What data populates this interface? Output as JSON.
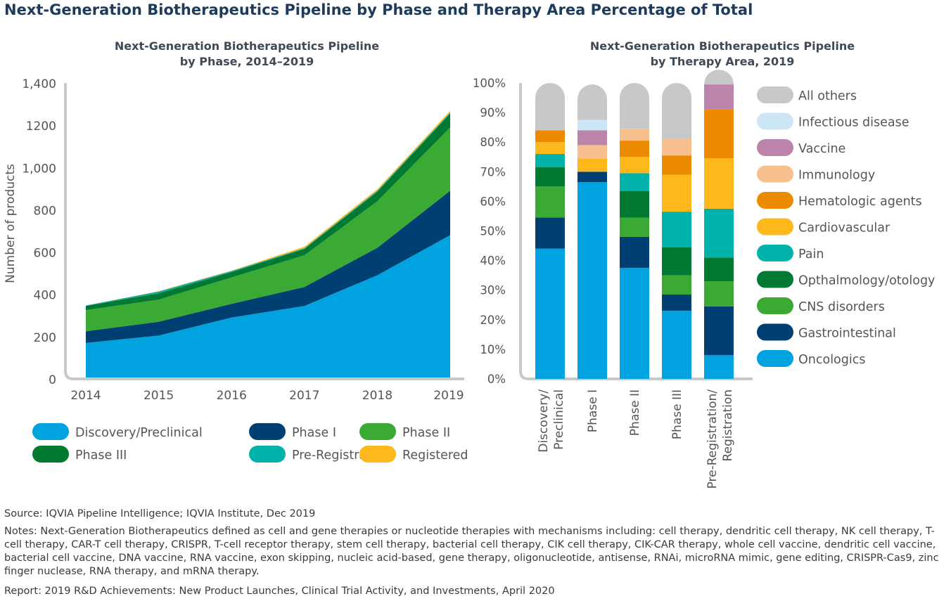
{
  "main_title": "Next-Generation Biotherapeutics Pipeline by Phase and Therapy Area Percentage of Total",
  "footer": {
    "source": "Source: IQVIA Pipeline Intelligence; IQVIA Institute, Dec 2019",
    "notes": "Notes: Next-Generation Biotherapeutics defined as cell and gene therapies or nucleotide therapies with mechanisms including: cell therapy, dendritic cell therapy, NK cell therapy, T-cell therapy, CAR-T cell therapy, CRISPR, T-cell receptor therapy, stem cell therapy, bacterial cell therapy, CIK cell therapy, CIK-CAR therapy, whole cell vaccine, dendritic cell vaccine, bacterial cell vaccine, DNA vaccine, RNA vaccine, exon skipping, nucleic acid-based, gene therapy, oligonucleotide, antisense, RNAi, microRNA mimic, gene editing, CRISPR-Cas9, zinc finger nuclease, RNA therapy, and mRNA therapy.",
    "report": "Report: 2019 R&D Achievements: New Product Launches, Clinical Trial Activity, and Investments, April 2020"
  },
  "chart_data": [
    {
      "type": "area",
      "stacked": true,
      "title_line1": "Next-Generation Biotherapeutics Pipeline",
      "title_line2": "by Phase, 2014–2019",
      "ylabel": "Number of products",
      "xlabel": "",
      "ylim": [
        0,
        1400
      ],
      "yticks": [
        0,
        200,
        400,
        600,
        800,
        1000,
        1200,
        1400
      ],
      "ytick_labels": [
        "0",
        "200",
        "400",
        "600",
        "800",
        "1,000",
        "1200",
        "1,400"
      ],
      "x": [
        "2014",
        "2015",
        "2016",
        "2017",
        "2018",
        "2019"
      ],
      "series": [
        {
          "name": "Discovery/Preclinical",
          "color": "#00A3E0",
          "values": [
            170,
            205,
            290,
            345,
            490,
            680
          ]
        },
        {
          "name": "Phase I",
          "color": "#003F72",
          "values": [
            55,
            65,
            65,
            90,
            130,
            210
          ]
        },
        {
          "name": "Phase II",
          "color": "#3AAA35",
          "values": [
            100,
            105,
            125,
            150,
            220,
            300
          ]
        },
        {
          "name": "Phase III",
          "color": "#007A33",
          "values": [
            20,
            30,
            25,
            30,
            45,
            65
          ]
        },
        {
          "name": "Pre-Registration",
          "color": "#00B2A9",
          "values": [
            2,
            8,
            5,
            3,
            5,
            5
          ]
        },
        {
          "name": "Registered",
          "color": "#FFB81C",
          "values": [
            0,
            2,
            2,
            7,
            7,
            8
          ]
        }
      ],
      "legend_position": "bottom"
    },
    {
      "type": "bar",
      "stacked": true,
      "percent": true,
      "title_line1": "Next-Generation Biotherapeutics Pipeline",
      "title_line2": "by Therapy Area, 2019",
      "ylim": [
        0,
        100
      ],
      "yticks": [
        0,
        10,
        20,
        30,
        40,
        50,
        60,
        70,
        80,
        90,
        100
      ],
      "ytick_labels": [
        "0%",
        "10%",
        "20%",
        "30%",
        "40%",
        "50%",
        "60%",
        "70%",
        "80%",
        "90%",
        "100%"
      ],
      "categories": [
        {
          "line1": "Discovery/",
          "line2": "Preclinical"
        },
        {
          "line1": "Phase I",
          "line2": ""
        },
        {
          "line1": "Phase II",
          "line2": ""
        },
        {
          "line1": "Phase III",
          "line2": ""
        },
        {
          "line1": "Pre-Registration/",
          "line2": "Registration"
        }
      ],
      "series": [
        {
          "name": "Oncologics",
          "color": "#00A3E0",
          "values": [
            44,
            66.5,
            37.5,
            23,
            8
          ]
        },
        {
          "name": "Gastrointestinal",
          "color": "#003F72",
          "values": [
            10.5,
            3.5,
            10.5,
            5.5,
            16.5
          ]
        },
        {
          "name": "CNS disorders",
          "color": "#3AAA35",
          "values": [
            10.5,
            0,
            6.5,
            6.5,
            8.5
          ]
        },
        {
          "name": "Opthalmology/otology",
          "color": "#007A33",
          "values": [
            6.5,
            0,
            9,
            9.5,
            8
          ]
        },
        {
          "name": "Pain",
          "color": "#00B2A9",
          "values": [
            4.5,
            0,
            6,
            12,
            16.5
          ]
        },
        {
          "name": "Cardiovascular",
          "color": "#FFB81C",
          "values": [
            4,
            4.5,
            5.5,
            12.5,
            17
          ]
        },
        {
          "name": "Hematologic agents",
          "color": "#ED8B00",
          "values": [
            4,
            0,
            5.5,
            6.5,
            16.5
          ]
        },
        {
          "name": "Immunology",
          "color": "#F9C08F",
          "values": [
            0,
            4.5,
            4,
            5.5,
            0
          ]
        },
        {
          "name": "Vaccine",
          "color": "#BC84AB",
          "values": [
            0,
            5,
            0,
            0,
            8.5
          ]
        },
        {
          "name": "Infectious disease",
          "color": "#CCE6F8",
          "values": [
            0,
            3.5,
            0,
            0,
            0
          ]
        },
        {
          "name": "All others",
          "color": "#C8C8C8",
          "values": [
            16,
            12,
            15.5,
            19,
            0.5
          ]
        }
      ],
      "legend_order": [
        "All others",
        "Infectious disease",
        "Vaccine",
        "Immunology",
        "Hematologic agents",
        "Cardiovascular",
        "Pain",
        "Opthalmology/otology",
        "CNS disorders",
        "Gastrointestinal",
        "Oncologics"
      ],
      "legend_position": "right"
    }
  ]
}
